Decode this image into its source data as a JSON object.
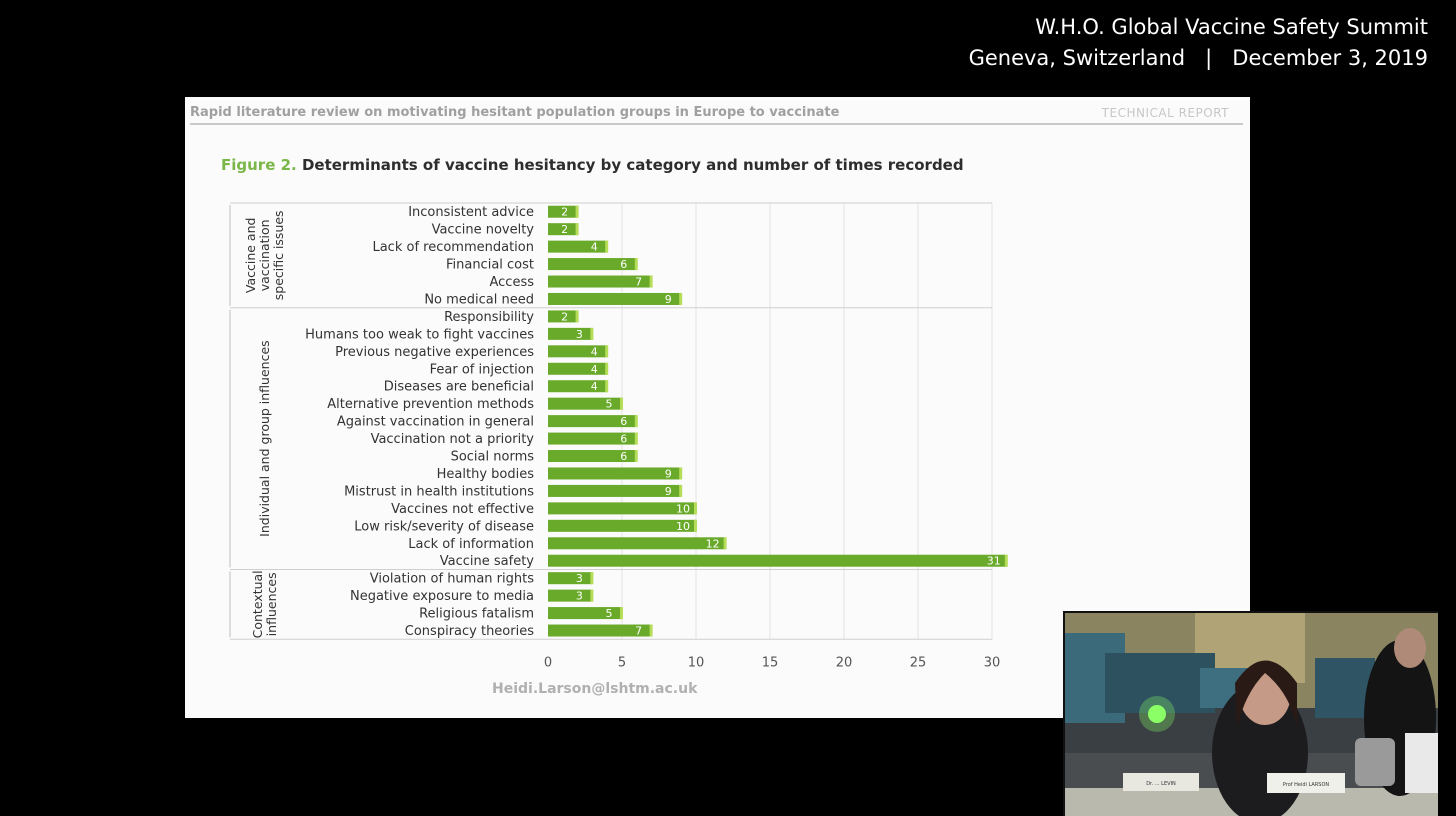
{
  "caption": {
    "line1": "W.H.O. Global Vaccine Safety Summit",
    "line2": "Geneva, Switzerland   |   December 3, 2019"
  },
  "slide": {
    "report_title": "Rapid literature review on motivating hesitant population groups in Europe to vaccinate",
    "report_type": "TECHNICAL REPORT",
    "figure_label": "Figure 2.",
    "figure_title": "Determinants of vaccine hesitancy by category and number of times recorded",
    "email": "Heidi.Larson@lshtm.ac.uk"
  },
  "webcam": {
    "nameplate_left": "Dr. ... LEVIN",
    "nameplate_right": "Prof Heidi LARSON"
  },
  "colors": {
    "bar": "#6aaa2a",
    "bar_edge": "#b6dd57",
    "grid": "#e3e3e3",
    "figure_label": "#7ab648"
  },
  "chart_data": {
    "type": "bar",
    "orientation": "horizontal",
    "title": "Determinants of vaccine hesitancy by category and number of times recorded",
    "xlim": [
      0,
      30
    ],
    "xticks": [
      "0",
      "5",
      "10",
      "15",
      "20",
      "25",
      "30"
    ],
    "grid": "vertical",
    "groups": [
      {
        "name": "Vaccine and vaccination specific issues",
        "label_lines": [
          "Vaccine and",
          "vaccination",
          "specific issues"
        ],
        "categories": [
          "Inconsistent advice",
          "Vaccine novelty",
          "Lack of recommendation",
          "Financial cost",
          "Access",
          "No medical need"
        ],
        "values": [
          2,
          2,
          4,
          6,
          7,
          9
        ]
      },
      {
        "name": "Individual and group influences",
        "label_lines": [
          "Individual and group influences"
        ],
        "categories": [
          "Responsibility",
          "Humans too weak to fight vaccines",
          "Previous negative experiences",
          "Fear of injection",
          "Diseases are beneficial",
          "Alternative prevention methods",
          "Against vaccination in general",
          "Vaccination not a priority",
          "Social norms",
          "Healthy bodies",
          "Mistrust in health institutions",
          "Vaccines not effective",
          "Low risk/severity of disease",
          "Lack of information",
          "Vaccine safety"
        ],
        "values": [
          2,
          3,
          4,
          4,
          4,
          5,
          6,
          6,
          6,
          9,
          9,
          10,
          10,
          12,
          31
        ]
      },
      {
        "name": "Contextual influences",
        "label_lines": [
          "Contextual",
          "influences"
        ],
        "categories": [
          "Violation of human rights",
          "Negative exposure to media",
          "Religious fatalism",
          "Conspiracy theories"
        ],
        "values": [
          3,
          3,
          5,
          7
        ]
      }
    ]
  }
}
